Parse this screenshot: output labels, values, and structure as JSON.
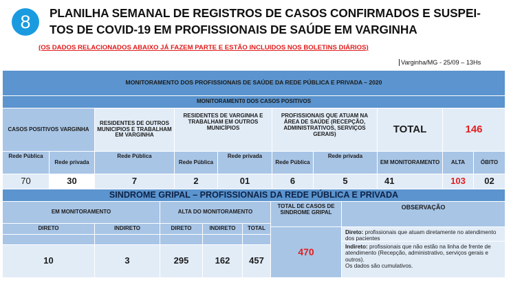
{
  "badge": {
    "number": "8"
  },
  "title": {
    "line1": "PLANILHA SEMANAL DE REGISTROS DE CASOS CONFIRMADOS E SUSPEI-",
    "line2": "TOS DE COVID-19 EM PROFISSIONAIS DE SAÚDE EM VARGINHA"
  },
  "note": "(OS DADOS RELACIONADOS ABAIXO JÁ FAZEM PARTE E ESTÃO INCLUIDOS NOS BOLETINS DIÁRIOS)",
  "stamp": "Varginha/MG - 25/09 – 13Hs",
  "header": "MONITORAMENTO DOS PROFISSIONAIS DE SAÚDE DA REDE PÚBLICA E PRIVADA – 2020",
  "subheader": "MONITORAMENT0 DOS CASOS POSITIVOS",
  "groups": {
    "casos": "CASOS POSITIVOS VARGINHA",
    "residentes_outros": "RESIDENTES DE OUTROS MUNICIPIOS E TRABALHAM EM VARGINHA",
    "residentes_varginha": "RESIDENTES DE VARGINHA E TRABALHAM EM OUTROS MUNICÍPIOS",
    "profissionais": "PROFISSIONAIS QUE ATUAM NA ÁREA DE SAÚDE (RECEPÇÃO, ADMINISTRATIVOS, SERVIÇOS GERAIS)",
    "total_label": "TOTAL",
    "total_value": "146"
  },
  "cols": [
    "Rede Pública",
    "Rede privada",
    "Rede Pública",
    "Rede Pública",
    "Rede privada",
    "Rede Pública",
    "Rede privada",
    "EM MONITORAMENTO",
    "ALTA",
    "ÓBITO"
  ],
  "values": [
    "70",
    "30",
    "7",
    "2",
    "01",
    "6",
    "5",
    "41",
    "103",
    "02"
  ],
  "sg": {
    "title": "SINDROME GRIPAL – PROFISSIONAIS DA REDE PÚBLICA E PRIVADA",
    "em_monitoramento": "EM MONITORAMENTO",
    "alta": "ALTA DO MONITORAMENTO",
    "total_casos": "TOTAL DE CASOS DE SINDROME GRIPAL",
    "observacao": "OBSERVAÇÃO",
    "direto": "DIRETO",
    "indireto": "INDIRETO",
    "alta_direto": "DIRETO",
    "alta_indireto": "INDIRETO",
    "alta_total": "TOTAL",
    "v_direto": "10",
    "v_indireto": "3",
    "v_alta_direto": "295",
    "v_alta_indireto": "162",
    "v_alta_total": "457",
    "v_total": "470",
    "obs_direto_label": "Direto:",
    "obs_direto_text": " profissionais que atuam diretamente no atendimento dos pacientes",
    "obs_indireto_label": "Indireto:",
    "obs_indireto_text": " profissionais que não estão na linha de frente de atendimento (Recepção, administrativo, serviços gerais e outros).",
    "obs_cumulativo": "Os dados são cumulativos."
  },
  "colors": {
    "dark": "#5b94ce",
    "medium": "#a8c5e6",
    "light": "#e2ecf7",
    "red": "#e21e1e",
    "badge": "#1a9be0"
  }
}
